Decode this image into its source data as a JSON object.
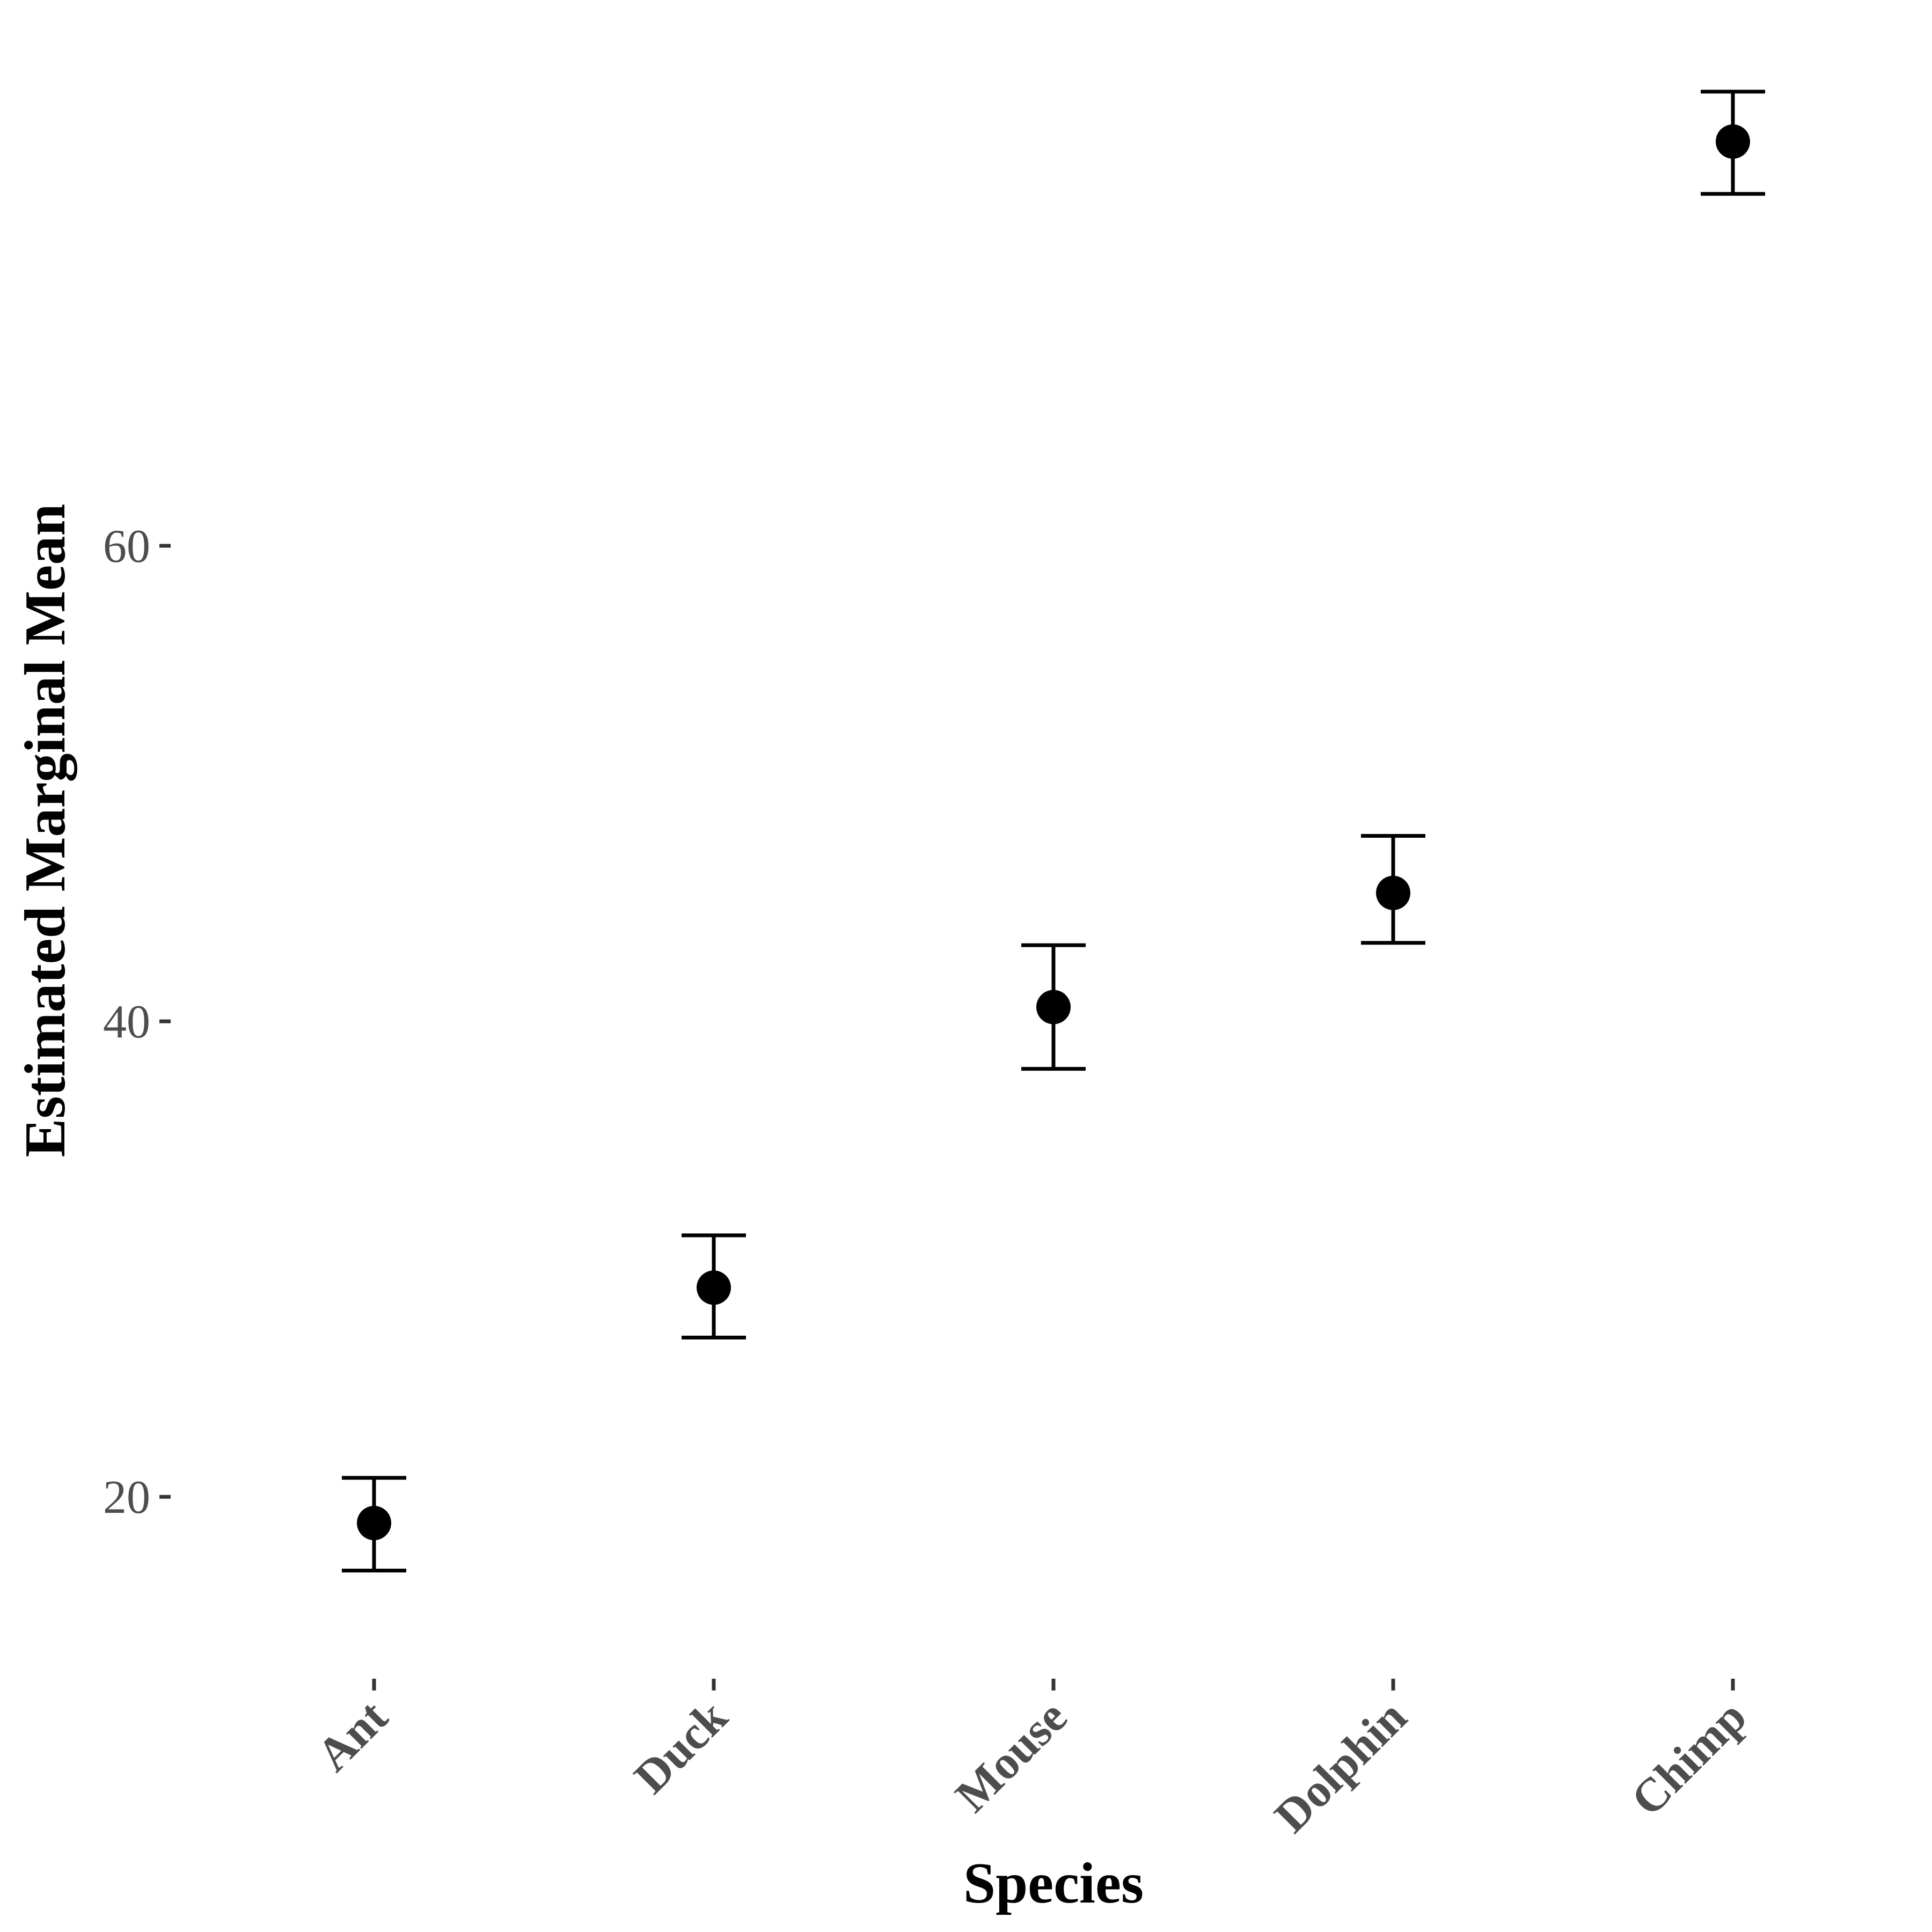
{
  "chart_data": {
    "type": "scatter",
    "xlabel": "Species",
    "ylabel": "Estimated Marginal Mean",
    "categories": [
      "Ant",
      "Duck",
      "Mouse",
      "Dolphin",
      "Chimp"
    ],
    "series": [
      {
        "values": [
          18.9,
          28.8,
          40.6,
          45.4,
          77.0
        ],
        "lower": [
          16.9,
          26.7,
          38.0,
          43.3,
          74.8
        ],
        "upper": [
          20.8,
          31.0,
          43.2,
          47.8,
          79.1
        ]
      }
    ],
    "yticks": [
      20,
      40,
      60
    ],
    "ylim": [
      14.0,
      81.6
    ],
    "grid": false,
    "legend": "none"
  }
}
